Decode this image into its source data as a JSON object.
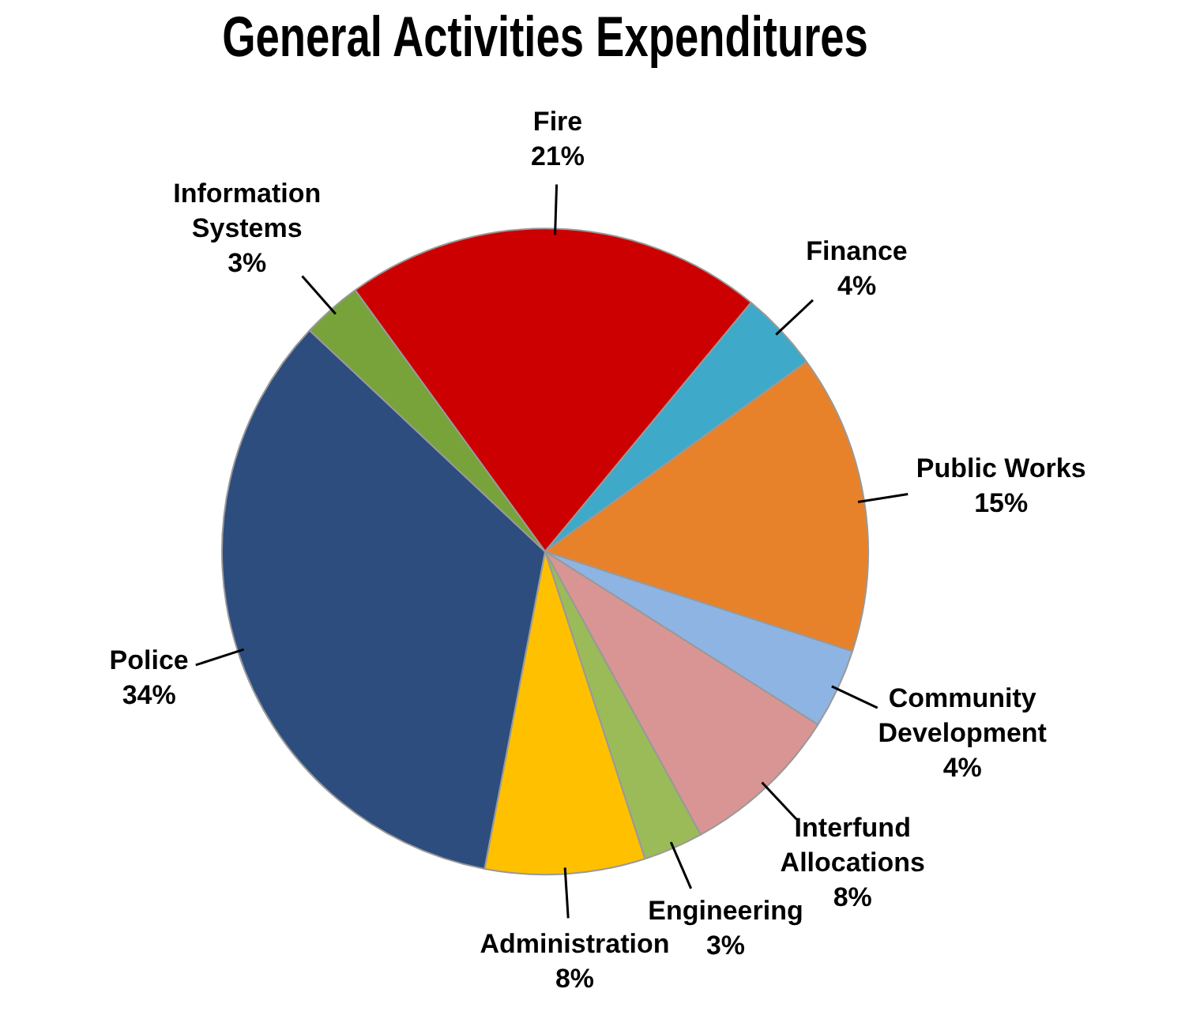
{
  "chart_data": {
    "type": "pie",
    "title": "General Activities Expenditures",
    "categories": [
      "Fire",
      "Finance",
      "Public Works",
      "Community Development",
      "Interfund Allocations",
      "Engineering",
      "Administration",
      "Police",
      "Information Systems"
    ],
    "values": [
      21,
      4,
      15,
      4,
      8,
      3,
      8,
      34,
      3
    ],
    "value_labels": [
      "21%",
      "4%",
      "15%",
      "4%",
      "8%",
      "3%",
      "8%",
      "34%",
      "3%"
    ],
    "colors": [
      "#cc0000",
      "#3fa9c9",
      "#e8822a",
      "#8eb4e3",
      "#d99594",
      "#9bbb59",
      "#ffc000",
      "#2c4d7e",
      "#77a33a"
    ],
    "legend": false
  }
}
